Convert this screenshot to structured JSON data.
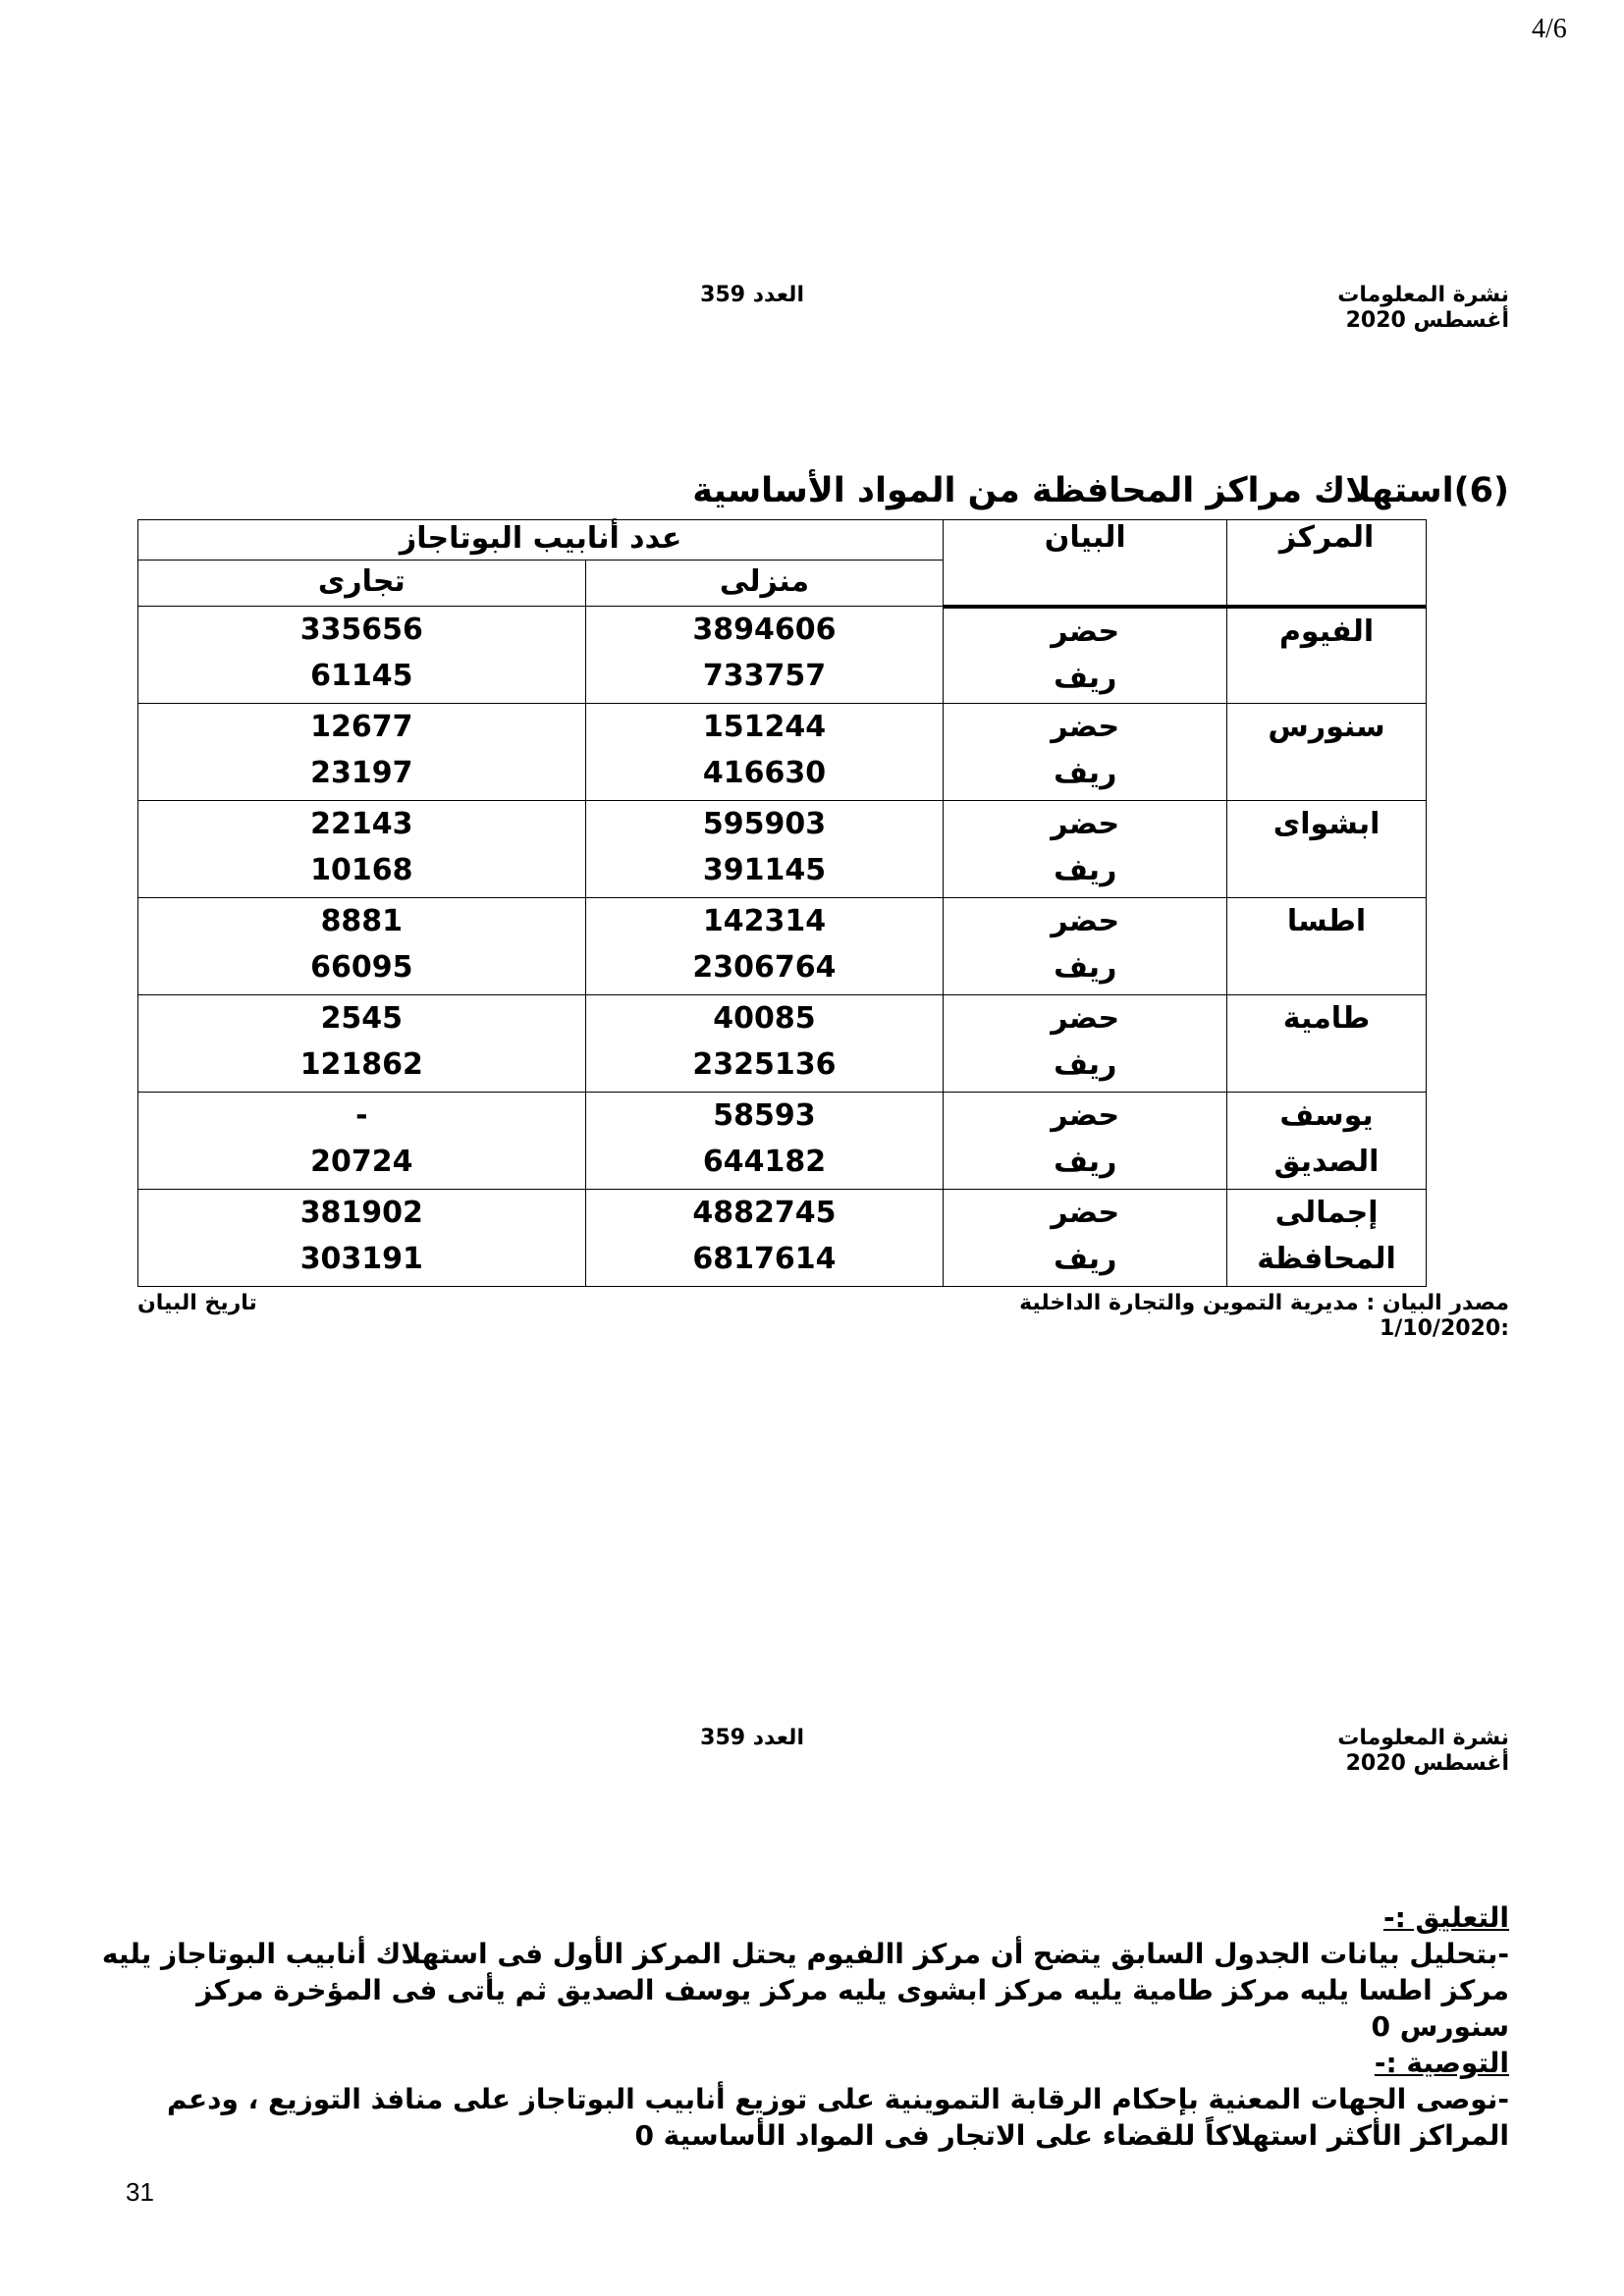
{
  "page_number": "4/6",
  "header": {
    "bulletin": "نشرة المعلومات",
    "issue": "العدد 359",
    "date": "أغسطس 2020"
  },
  "title": "(6)استهلاك مراكز المحافظة من المواد الأساسية",
  "table": {
    "col_center": "المركز",
    "col_statement": "البيان",
    "col_group": "عدد أنابيب البوتاجاز",
    "col_home": "منزلى",
    "col_commercial": "تجارى",
    "urban": "حضر",
    "rural": "ريف",
    "rows": [
      {
        "center": "الفيوم",
        "home": [
          "3894606",
          "733757"
        ],
        "commercial": [
          "335656",
          "61145"
        ]
      },
      {
        "center": "سنورس",
        "home": [
          "151244",
          "416630"
        ],
        "commercial": [
          "12677",
          "23197"
        ]
      },
      {
        "center": "ابشواى",
        "home": [
          "595903",
          "391145"
        ],
        "commercial": [
          "22143",
          "10168"
        ]
      },
      {
        "center": "اطسا",
        "home": [
          "142314",
          "2306764"
        ],
        "commercial": [
          "8881",
          "66095"
        ]
      },
      {
        "center": "طامية",
        "home": [
          "40085",
          "2325136"
        ],
        "commercial": [
          "2545",
          "121862"
        ]
      },
      {
        "center": "يوسف الصديق",
        "home": [
          "58593",
          "644182"
        ],
        "commercial": [
          "-",
          "20724"
        ]
      },
      {
        "center": "إجمالى المحافظة",
        "home": [
          "4882745",
          "6817614"
        ],
        "commercial": [
          "381902",
          "303191"
        ]
      }
    ]
  },
  "source": "مصدر البيان : مديرية التموين والتجارة الداخلية",
  "date_label": "تاريخ البيان",
  "date_value": ":1/10/2020",
  "comment_heading": "التعليق :-",
  "comment_text": "-بتحليل بيانات الجدول السابق يتضح أن مركز االفيوم يحتل المركز الأول فى استهلاك أنابيب البوتاجاز يليه مركز اطسا يليه مركز طامية يليه مركز ابشوى يليه مركز يوسف الصديق ثم يأتى فى المؤخرة مركز سنورس 0",
  "recommendation_heading": "التوصية :-",
  "recommendation_text": "-نوصى الجهات المعنية بإحكام الرقابة التموينية على توزيع أنابيب البوتاجاز على منافذ التوزيع ، ودعم المراكز الأكثر استهلاكاً للقضاء على الاتجار فى المواد الأساسية 0",
  "footer_page": "31"
}
